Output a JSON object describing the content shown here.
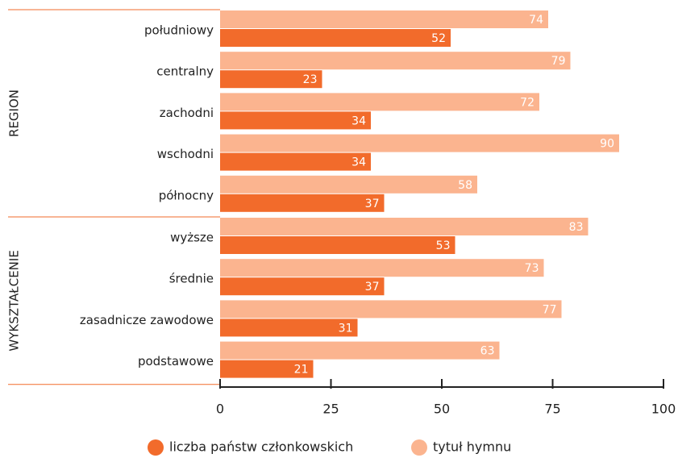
{
  "chart_data": {
    "type": "bar",
    "orientation": "horizontal",
    "groups": [
      {
        "name": "REGION",
        "categories": [
          "południowy",
          "centralny",
          "zachodni",
          "wschodni",
          "północny"
        ]
      },
      {
        "name": "WYKSZTAŁCENIE",
        "categories": [
          "wyższe",
          "średnie",
          "zasadnicze zawodowe",
          "podstawowe"
        ]
      }
    ],
    "series": [
      {
        "name": "liczba państw członkowskich",
        "color": "#f26b2b",
        "values": [
          52,
          23,
          34,
          34,
          37,
          53,
          37,
          31,
          21
        ]
      },
      {
        "name": "tytuł hymnu",
        "color": "#fbb48f",
        "values": [
          74,
          79,
          72,
          90,
          58,
          83,
          73,
          77,
          63
        ]
      }
    ],
    "xlim": [
      0,
      100
    ],
    "xticks": [
      0,
      25,
      50,
      75,
      100
    ],
    "legend": "bottom"
  }
}
